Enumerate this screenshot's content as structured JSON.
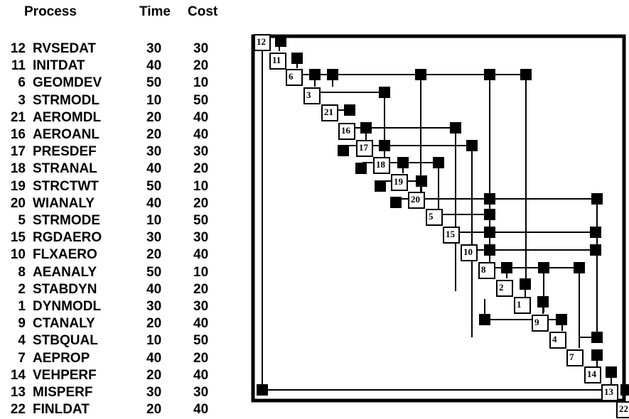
{
  "headers": {
    "process": "Process",
    "time": "Time",
    "cost": "Cost"
  },
  "processes": [
    {
      "id": "12",
      "name": "RVSEDAT",
      "time": "30",
      "cost": "30"
    },
    {
      "id": "11",
      "name": "INITDAT",
      "time": "40",
      "cost": "20"
    },
    {
      "id": "6",
      "name": "GEOMDEV",
      "time": "50",
      "cost": "10"
    },
    {
      "id": "3",
      "name": "STRMODL",
      "time": "10",
      "cost": "50"
    },
    {
      "id": "21",
      "name": "AEROMDL",
      "time": "20",
      "cost": "40"
    },
    {
      "id": "16",
      "name": "AEROANL",
      "time": "20",
      "cost": "40"
    },
    {
      "id": "17",
      "name": "PRESDEF",
      "time": "30",
      "cost": "30"
    },
    {
      "id": "18",
      "name": "STRANAL",
      "time": "40",
      "cost": "20"
    },
    {
      "id": "19",
      "name": "STRCTWT",
      "time": "50",
      "cost": "10"
    },
    {
      "id": "20",
      "name": "WIANALY",
      "time": "40",
      "cost": "20"
    },
    {
      "id": "5",
      "name": "STRMODE",
      "time": "10",
      "cost": "50"
    },
    {
      "id": "15",
      "name": "RGDAERO",
      "time": "30",
      "cost": "30"
    },
    {
      "id": "10",
      "name": "FLXAERO",
      "time": "20",
      "cost": "40"
    },
    {
      "id": "8",
      "name": "AEANALY",
      "time": "50",
      "cost": "10"
    },
    {
      "id": "2",
      "name": "STABDYN",
      "time": "40",
      "cost": "20"
    },
    {
      "id": "1",
      "name": "DYNMODL",
      "time": "30",
      "cost": "30"
    },
    {
      "id": "9",
      "name": "CTANALY",
      "time": "20",
      "cost": "40"
    },
    {
      "id": "4",
      "name": "STBQUAL",
      "time": "10",
      "cost": "50"
    },
    {
      "id": "7",
      "name": "AEPROP",
      "time": "40",
      "cost": "20"
    },
    {
      "id": "14",
      "name": "VEHPERF",
      "time": "20",
      "cost": "40"
    },
    {
      "id": "13",
      "name": "MISPERF",
      "time": "30",
      "cost": "30"
    },
    {
      "id": "22",
      "name": "FINLDAT",
      "time": "20",
      "cost": "40"
    }
  ]
}
